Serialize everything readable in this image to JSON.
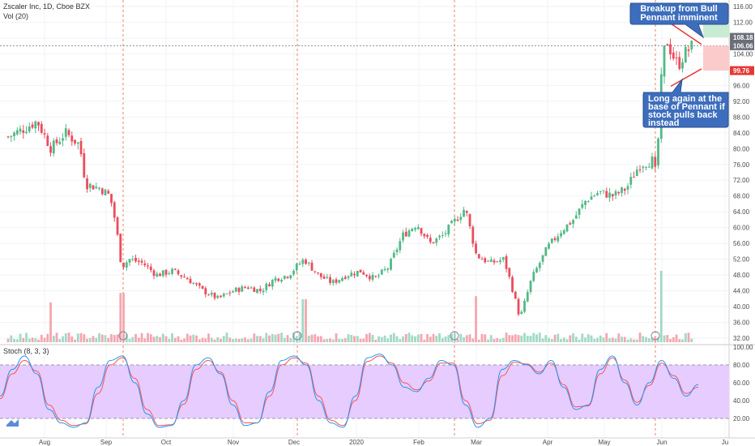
{
  "header": {
    "symbol_line": "Zscaler Inc, 1D, Cboe BZX",
    "volume_label": "Vol (20)",
    "stoch_label": "Stoch (8, 3, 3)"
  },
  "colors": {
    "up": "#53b987",
    "down": "#eb4d5c",
    "vol_up": "#a2d9c4",
    "vol_down": "#f5a6ae",
    "grid": "#f0f3fa",
    "stoch_k": "#2196f3",
    "stoch_d": "#ff5252",
    "stoch_band": "#e6ccff",
    "note_bg": "#3d6ebd",
    "target_zone": "#c8ecd3",
    "stop_zone": "#fbcbcc",
    "badge_current": "#6b6f7a",
    "badge_stop": "#e53935"
  },
  "price_axis": {
    "ticks": [
      "32.00",
      "36.00",
      "40.00",
      "44.00",
      "48.00",
      "52.00",
      "56.00",
      "60.00",
      "64.00",
      "68.00",
      "72.00",
      "76.00",
      "80.00",
      "84.00",
      "88.00",
      "92.00",
      "96.00",
      "100.00",
      "104.00",
      "108.00",
      "112.00",
      "116.00"
    ],
    "badges": [
      {
        "label": "108.18",
        "value": 108.18,
        "kind": "last"
      },
      {
        "label": "106.06",
        "value": 106.06,
        "kind": "current"
      },
      {
        "label": "99.76",
        "value": 99.76,
        "kind": "stop"
      }
    ]
  },
  "stoch_axis": {
    "ticks": [
      "20.00",
      "40.00",
      "60.00",
      "80.00",
      "100.00"
    ]
  },
  "time_axis": {
    "labels": [
      "Aug",
      "Sep",
      "Oct",
      "Nov",
      "Dec",
      "2020",
      "Feb",
      "Mar",
      "Apr",
      "May",
      "Jun",
      "Ju"
    ]
  },
  "annotations": {
    "note_top": [
      "Breakup from Bull",
      "Pennant imminent"
    ],
    "note_bottom": [
      "Long again at the",
      "base of Pennant if",
      "stock pulls back",
      "instead"
    ]
  },
  "chart_data": {
    "type": "candlestick",
    "title": "Zscaler Inc, 1D, Cboe BZX",
    "xlabel": "",
    "ylabel": "",
    "ylim": [
      30,
      118
    ],
    "key_prices": {
      "last": 108.18,
      "current": 106.06,
      "stop": 99.76
    },
    "anchors": [
      {
        "date": "Jul 14",
        "close": 83
      },
      {
        "date": "Jul 22",
        "close": 85
      },
      {
        "date": "Jul 29",
        "close": 87
      },
      {
        "date": "Aug 5",
        "close": 80
      },
      {
        "date": "Aug 12",
        "close": 84
      },
      {
        "date": "Aug 19",
        "close": 81
      },
      {
        "date": "Aug 22",
        "close": 71
      },
      {
        "date": "Aug 29",
        "close": 70
      },
      {
        "date": "Sep 3",
        "close": 68
      },
      {
        "date": "Sep 6",
        "close": 61
      },
      {
        "date": "Sep 9",
        "close": 50
      },
      {
        "date": "Sep 13",
        "close": 52
      },
      {
        "date": "Sep 20",
        "close": 51
      },
      {
        "date": "Sep 27",
        "close": 48
      },
      {
        "date": "Oct 4",
        "close": 49
      },
      {
        "date": "Oct 11",
        "close": 47
      },
      {
        "date": "Oct 18",
        "close": 44
      },
      {
        "date": "Oct 25",
        "close": 42
      },
      {
        "date": "Nov 1",
        "close": 44
      },
      {
        "date": "Nov 8",
        "close": 45
      },
      {
        "date": "Nov 15",
        "close": 44
      },
      {
        "date": "Nov 22",
        "close": 47
      },
      {
        "date": "Nov 29",
        "close": 48
      },
      {
        "date": "Dec 6",
        "close": 52
      },
      {
        "date": "Dec 13",
        "close": 48
      },
      {
        "date": "Dec 20",
        "close": 46
      },
      {
        "date": "Dec 27",
        "close": 48
      },
      {
        "date": "Jan 3",
        "close": 49
      },
      {
        "date": "Jan 10",
        "close": 47
      },
      {
        "date": "Jan 17",
        "close": 50
      },
      {
        "date": "Jan 24",
        "close": 58
      },
      {
        "date": "Jan 31",
        "close": 61
      },
      {
        "date": "Feb 7",
        "close": 56
      },
      {
        "date": "Feb 14",
        "close": 58
      },
      {
        "date": "Feb 21",
        "close": 62
      },
      {
        "date": "Feb 26",
        "close": 65
      },
      {
        "date": "Mar 1",
        "close": 53
      },
      {
        "date": "Mar 7",
        "close": 51
      },
      {
        "date": "Mar 13",
        "close": 52
      },
      {
        "date": "Mar 16",
        "close": 46
      },
      {
        "date": "Mar 20",
        "close": 37
      },
      {
        "date": "Mar 25",
        "close": 47
      },
      {
        "date": "Apr 1",
        "close": 55
      },
      {
        "date": "Apr 8",
        "close": 59
      },
      {
        "date": "Apr 15",
        "close": 62
      },
      {
        "date": "Apr 22",
        "close": 67
      },
      {
        "date": "Apr 29",
        "close": 69
      },
      {
        "date": "May 6",
        "close": 68
      },
      {
        "date": "May 13",
        "close": 70
      },
      {
        "date": "May 20",
        "close": 76
      },
      {
        "date": "May 27",
        "close": 77
      },
      {
        "date": "May 29",
        "close": 73
      },
      {
        "date": "Jun 1",
        "close": 100
      },
      {
        "date": "Jun 3",
        "close": 108
      },
      {
        "date": "Jun 6",
        "close": 104
      },
      {
        "date": "Jun 9",
        "close": 101
      },
      {
        "date": "Jun 12",
        "close": 104
      },
      {
        "date": "Jun 16",
        "close": 106
      }
    ],
    "volume_spikes": [
      {
        "date": "Aug 5",
        "relative": 0.5
      },
      {
        "date": "Sep 9",
        "relative": 0.65
      },
      {
        "date": "Dec 6",
        "relative": 0.55
      },
      {
        "date": "Mar 1",
        "relative": 0.6
      },
      {
        "date": "Jun 1",
        "relative": 1.0
      }
    ],
    "stochastic": {
      "k": [
        45,
        75,
        90,
        70,
        30,
        15,
        10,
        15,
        55,
        85,
        90,
        60,
        25,
        10,
        12,
        40,
        80,
        88,
        70,
        35,
        12,
        15,
        50,
        85,
        90,
        80,
        40,
        15,
        10,
        45,
        88,
        92,
        80,
        55,
        50,
        65,
        85,
        80,
        35,
        10,
        20,
        75,
        85,
        80,
        70,
        85,
        55,
        30,
        35,
        75,
        90,
        60,
        35,
        60,
        85,
        65,
        45,
        58
      ],
      "d": [
        42,
        70,
        85,
        73,
        35,
        18,
        12,
        14,
        48,
        80,
        88,
        65,
        30,
        12,
        13,
        36,
        75,
        85,
        72,
        40,
        15,
        15,
        45,
        80,
        88,
        82,
        45,
        18,
        12,
        40,
        84,
        90,
        82,
        60,
        52,
        62,
        82,
        82,
        40,
        14,
        18,
        68,
        83,
        81,
        72,
        82,
        58,
        33,
        34,
        70,
        88,
        63,
        38,
        57,
        82,
        68,
        48,
        55
      ]
    },
    "stoch_levels": {
      "upper": 80,
      "lower": 20
    },
    "ranges_highlight": [
      {
        "label": "target",
        "from": 108.18,
        "to": 113.5
      },
      {
        "label": "stop",
        "from": 99.76,
        "to": 106.06
      }
    ]
  }
}
